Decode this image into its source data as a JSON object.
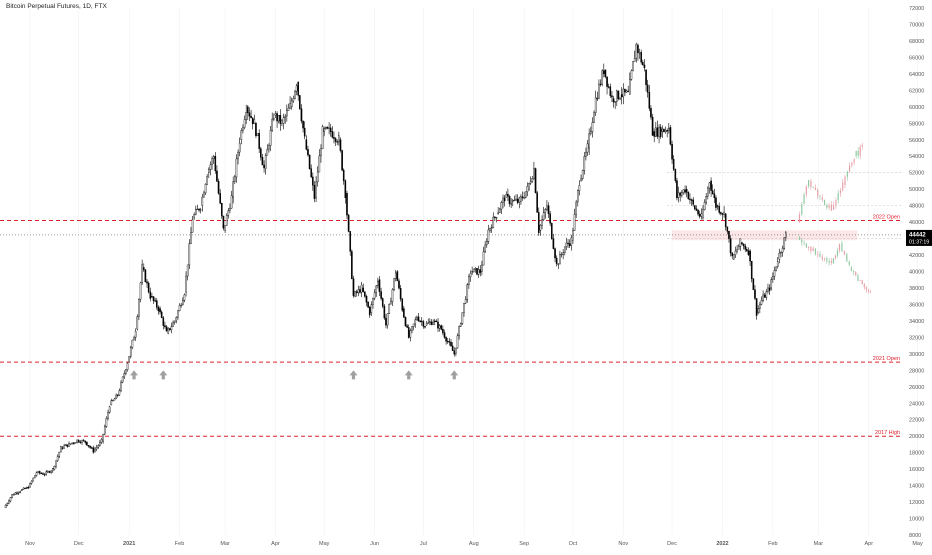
{
  "header": {
    "title": "Bitcoin Perpetual Futures, 1D, FTX"
  },
  "colors": {
    "background": "#ffffff",
    "candle": "#000000",
    "ghost_up": "#e8a0a8",
    "ghost_alt": "#90c8a0",
    "level_line": "#e0202c",
    "level_text": "#e0202c",
    "price_label_bg": "#000000",
    "price_label_text": "#ffffff",
    "axis_text": "#555555",
    "grid": "#eeeeee",
    "arrow": "#a0a0a0",
    "zone_fill": "#fbe3e5"
  },
  "chart_data": {
    "type": "candlestick",
    "title": "Bitcoin Perpetual Futures, 1D, FTX",
    "xlabel": "",
    "ylabel": "",
    "grid": false,
    "x_ticks": [
      "Nov",
      "Dec",
      "2021",
      "Feb",
      "Mar",
      "Apr",
      "May",
      "Jun",
      "Jul",
      "Aug",
      "Sep",
      "Oct",
      "Nov",
      "Dec",
      "2022",
      "Feb",
      "Mar",
      "Apr",
      "May"
    ],
    "y_ticks": [
      8000,
      10000,
      12000,
      14000,
      16000,
      18000,
      20000,
      22000,
      24000,
      26000,
      28000,
      30000,
      32000,
      34000,
      36000,
      38000,
      40000,
      42000,
      44000,
      46000,
      48000,
      50000,
      52000,
      54000,
      56000,
      58000,
      60000,
      62000,
      64000,
      66000,
      68000,
      70000,
      72000
    ],
    "ylim": [
      8000,
      72000
    ],
    "current_price": {
      "value": "44442",
      "countdown": "01:37:19"
    },
    "levels": [
      {
        "label": "2022 Open",
        "value": 46200
      },
      {
        "label": "2021 Open",
        "value": 29000
      },
      {
        "label": "2017 High",
        "value": 20000
      }
    ],
    "ranges": [
      {
        "value": 52000
      },
      {
        "value": 48000
      },
      {
        "value": 44000
      }
    ],
    "zone": {
      "from": 43800,
      "to": 45000
    },
    "support_arrows": [
      {
        "date": "2021-01-04",
        "value": 27500
      },
      {
        "date": "2021-01-22",
        "value": 27500
      },
      {
        "date": "2021-05-19",
        "value": 27500
      },
      {
        "date": "2021-06-22",
        "value": 27500
      },
      {
        "date": "2021-07-20",
        "value": 27500
      }
    ],
    "series": [
      {
        "points": [
          [
            "2020-10-16",
            11300
          ],
          [
            "2020-10-21",
            12900
          ],
          [
            "2020-10-26",
            13400
          ],
          [
            "2020-10-31",
            13800
          ],
          [
            "2020-11-05",
            15600
          ],
          [
            "2020-11-10",
            15400
          ],
          [
            "2020-11-15",
            16000
          ],
          [
            "2020-11-20",
            18600
          ],
          [
            "2020-11-25",
            19000
          ],
          [
            "2020-11-30",
            19500
          ],
          [
            "2020-12-05",
            19300
          ],
          [
            "2020-12-10",
            18200
          ],
          [
            "2020-12-15",
            19400
          ],
          [
            "2020-12-20",
            23800
          ],
          [
            "2020-12-25",
            25000
          ],
          [
            "2020-12-31",
            29000
          ],
          [
            "2021-01-05",
            33000
          ],
          [
            "2021-01-09",
            40500
          ],
          [
            "2021-01-14",
            37000
          ],
          [
            "2021-01-19",
            35500
          ],
          [
            "2021-01-24",
            32500
          ],
          [
            "2021-01-29",
            34000
          ],
          [
            "2021-02-04",
            37500
          ],
          [
            "2021-02-09",
            46500
          ],
          [
            "2021-02-14",
            48000
          ],
          [
            "2021-02-18",
            52000
          ],
          [
            "2021-02-22",
            54000
          ],
          [
            "2021-02-28",
            45000
          ],
          [
            "2021-03-05",
            49000
          ],
          [
            "2021-03-10",
            56000
          ],
          [
            "2021-03-14",
            60000
          ],
          [
            "2021-03-19",
            58000
          ],
          [
            "2021-03-25",
            52500
          ],
          [
            "2021-03-31",
            59000
          ],
          [
            "2021-04-05",
            58000
          ],
          [
            "2021-04-10",
            60000
          ],
          [
            "2021-04-14",
            63000
          ],
          [
            "2021-04-19",
            56000
          ],
          [
            "2021-04-25",
            49000
          ],
          [
            "2021-04-30",
            57000
          ],
          [
            "2021-05-05",
            57000
          ],
          [
            "2021-05-10",
            56000
          ],
          [
            "2021-05-14",
            49500
          ],
          [
            "2021-05-19",
            37000
          ],
          [
            "2021-05-24",
            38000
          ],
          [
            "2021-05-29",
            35000
          ],
          [
            "2021-06-03",
            39000
          ],
          [
            "2021-06-08",
            33500
          ],
          [
            "2021-06-14",
            40000
          ],
          [
            "2021-06-18",
            35500
          ],
          [
            "2021-06-22",
            32000
          ],
          [
            "2021-06-27",
            34500
          ],
          [
            "2021-07-02",
            33500
          ],
          [
            "2021-07-07",
            34000
          ],
          [
            "2021-07-12",
            33000
          ],
          [
            "2021-07-16",
            31500
          ],
          [
            "2021-07-20",
            30000
          ],
          [
            "2021-07-25",
            35000
          ],
          [
            "2021-07-30",
            40000
          ],
          [
            "2021-08-05",
            40000
          ],
          [
            "2021-08-10",
            45000
          ],
          [
            "2021-08-15",
            47000
          ],
          [
            "2021-08-20",
            49000
          ],
          [
            "2021-08-24",
            48500
          ],
          [
            "2021-08-29",
            48500
          ],
          [
            "2021-09-03",
            50000
          ],
          [
            "2021-09-07",
            52500
          ],
          [
            "2021-09-10",
            45000
          ],
          [
            "2021-09-15",
            48000
          ],
          [
            "2021-09-21",
            40800
          ],
          [
            "2021-09-26",
            43000
          ],
          [
            "2021-09-30",
            43800
          ],
          [
            "2021-10-05",
            51000
          ],
          [
            "2021-10-10",
            55000
          ],
          [
            "2021-10-15",
            61000
          ],
          [
            "2021-10-20",
            64500
          ],
          [
            "2021-10-25",
            61000
          ],
          [
            "2021-10-30",
            61500
          ],
          [
            "2021-11-04",
            61500
          ],
          [
            "2021-11-09",
            67500
          ],
          [
            "2021-11-14",
            64500
          ],
          [
            "2021-11-19",
            57000
          ],
          [
            "2021-11-24",
            57000
          ],
          [
            "2021-11-29",
            57500
          ],
          [
            "2021-12-04",
            49000
          ],
          [
            "2021-12-09",
            50000
          ],
          [
            "2021-12-14",
            48000
          ],
          [
            "2021-12-19",
            46500
          ],
          [
            "2021-12-24",
            51000
          ],
          [
            "2021-12-28",
            48000
          ],
          [
            "2022-01-02",
            47000
          ],
          [
            "2022-01-07",
            41500
          ],
          [
            "2022-01-12",
            43500
          ],
          [
            "2022-01-17",
            42500
          ],
          [
            "2022-01-22",
            35000
          ],
          [
            "2022-01-25",
            36500
          ],
          [
            "2022-01-30",
            38000
          ],
          [
            "2022-02-04",
            41500
          ],
          [
            "2022-02-09",
            44442
          ]
        ]
      },
      {
        "name": "",
        "style": "projection",
        "points": [
          [
            "2022-02-16",
            46000
          ],
          [
            "2022-02-23",
            51000
          ],
          [
            "2022-03-02",
            49000
          ],
          [
            "2022-03-09",
            47500
          ],
          [
            "2022-03-16",
            50500
          ],
          [
            "2022-03-23",
            54000
          ],
          [
            "2022-03-28",
            55000
          ]
        ]
      },
      {
        "name": "",
        "style": "projection",
        "points": [
          [
            "2022-02-16",
            44200
          ],
          [
            "2022-02-23",
            43000
          ],
          [
            "2022-03-02",
            41800
          ],
          [
            "2022-03-09",
            41000
          ],
          [
            "2022-03-14",
            43500
          ],
          [
            "2022-03-20",
            40500
          ],
          [
            "2022-03-28",
            38500
          ],
          [
            "2022-04-02",
            37500
          ]
        ]
      }
    ]
  }
}
